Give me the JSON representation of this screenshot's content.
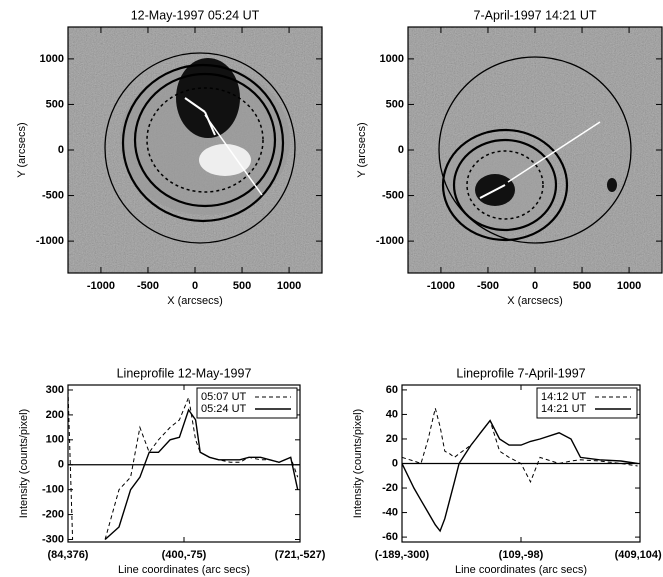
{
  "chart_data": [
    {
      "type": "image",
      "title": "12-May-1997 05:24 UT",
      "xlabel": "X (arcsecs)",
      "ylabel": "Y (arcsecs)",
      "xlim": [
        -1350,
        1350
      ],
      "ylim": [
        -1350,
        1350
      ],
      "xticks": [
        -1000,
        -500,
        0,
        500,
        1000
      ],
      "yticks": [
        -1000,
        -500,
        0,
        500,
        1000
      ]
    },
    {
      "type": "image",
      "title": "7-April-1997 14:21 UT",
      "xlabel": "X (arcsecs)",
      "ylabel": "Y (arcsecs)",
      "xlim": [
        -1350,
        1350
      ],
      "ylim": [
        -1350,
        1350
      ],
      "xticks": [
        -1000,
        -500,
        0,
        500,
        1000
      ],
      "yticks": [
        -1000,
        -500,
        0,
        500,
        1000
      ]
    },
    {
      "type": "line",
      "title": "Lineprofile 12-May-1997",
      "xlabel": "Line coordinates (arc secs)",
      "ylabel": "Intensity (counts/pixel)",
      "xlim": [
        0,
        100
      ],
      "ylim": [
        -310,
        320
      ],
      "xticks": [
        {
          "value": 0,
          "label": "(84,376)"
        },
        {
          "value": 50,
          "label": "(400,-75)"
        },
        {
          "value": 100,
          "label": "(721,-527)"
        }
      ],
      "yticks": [
        -300,
        -200,
        -100,
        0,
        100,
        200,
        300
      ],
      "hline": 0,
      "x": [
        0,
        2,
        6,
        10,
        16,
        22,
        27,
        31,
        35,
        39,
        44,
        48,
        52,
        55,
        57,
        61,
        65,
        70,
        74,
        78,
        83,
        87,
        91,
        96,
        99
      ],
      "series": [
        {
          "name": "05:07 UT",
          "color": "#000000",
          "style": "dashed",
          "values": [
            300,
            -300,
            null,
            null,
            -300,
            -100,
            -50,
            150,
            50,
            100,
            150,
            180,
            270,
            100,
            50,
            30,
            20,
            10,
            10,
            30,
            20,
            20,
            10,
            30,
            -50
          ]
        },
        {
          "name": "05:24 UT",
          "color": "#000000",
          "style": "solid",
          "values": [
            null,
            null,
            null,
            null,
            -300,
            -250,
            -100,
            -50,
            50,
            50,
            100,
            110,
            220,
            180,
            50,
            30,
            20,
            20,
            20,
            30,
            30,
            20,
            10,
            30,
            -100
          ]
        }
      ]
    },
    {
      "type": "line",
      "title": "Lineprofile 7-April-1997",
      "xlabel": "Line coordinates (arc secs)",
      "ylabel": "Intensity (counts/pixel)",
      "xlim": [
        0,
        100
      ],
      "ylim": [
        -64,
        64
      ],
      "xticks": [
        {
          "value": 0,
          "label": "(-189,-300)"
        },
        {
          "value": 50,
          "label": "(109,-98)"
        },
        {
          "value": 100,
          "label": "(409,104)"
        }
      ],
      "yticks": [
        -60,
        -40,
        -20,
        0,
        20,
        40,
        60
      ],
      "hline": 0,
      "x": [
        0,
        5,
        8,
        11,
        14,
        16,
        18,
        20,
        22,
        24,
        29,
        31,
        33,
        37,
        41,
        45,
        50,
        54,
        58,
        66,
        71,
        75,
        83,
        92,
        99
      ],
      "series": [
        {
          "name": "14:12 UT",
          "color": "#000000",
          "style": "dashed",
          "values": [
            5,
            2,
            0,
            20,
            45,
            30,
            10,
            8,
            5,
            8,
            15,
            20,
            25,
            35,
            10,
            5,
            0,
            -15,
            5,
            0,
            2,
            3,
            2,
            0,
            -2
          ]
        },
        {
          "name": "14:21 UT",
          "color": "#000000",
          "style": "solid",
          "values": [
            0,
            -20,
            -30,
            -40,
            -50,
            -55,
            -45,
            -30,
            -15,
            0,
            15,
            20,
            25,
            35,
            20,
            15,
            15,
            18,
            20,
            25,
            20,
            5,
            3,
            2,
            0
          ]
        }
      ]
    }
  ]
}
